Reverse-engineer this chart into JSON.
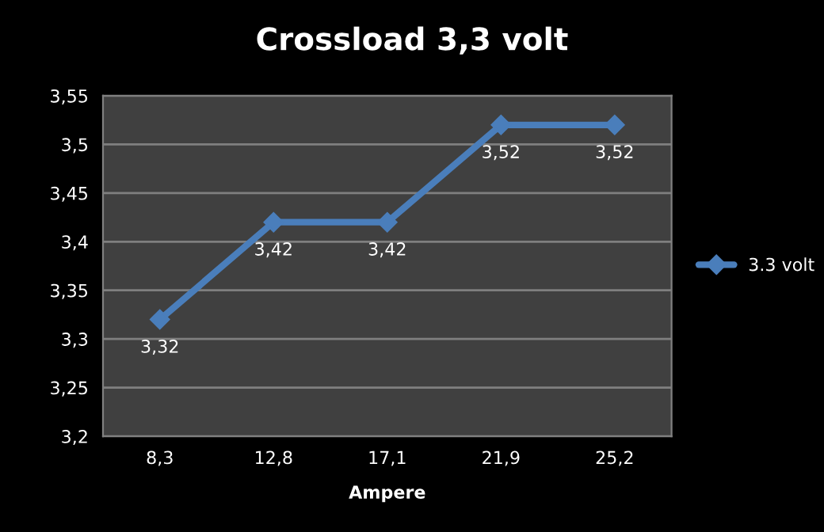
{
  "chart_data": {
    "type": "line",
    "title": "Crossload 3,3 volt",
    "xlabel": "Ampere",
    "categories": [
      "8,3",
      "12,8",
      "17,1",
      "21,9",
      "25,2"
    ],
    "series": [
      {
        "name": "3.3 volt",
        "color": "#4a7ebb",
        "values": [
          3.32,
          3.42,
          3.42,
          3.52,
          3.52
        ],
        "value_labels": [
          "3,32",
          "3,42",
          "3,42",
          "3,52",
          "3,52"
        ]
      }
    ],
    "ylim": [
      3.2,
      3.55
    ],
    "yticks": [
      {
        "value": 3.2,
        "label": "3,2"
      },
      {
        "value": 3.25,
        "label": "3,25"
      },
      {
        "value": 3.3,
        "label": "3,3"
      },
      {
        "value": 3.35,
        "label": "3,35"
      },
      {
        "value": 3.4,
        "label": "3,4"
      },
      {
        "value": 3.45,
        "label": "3,45"
      },
      {
        "value": 3.5,
        "label": "3,5"
      },
      {
        "value": 3.55,
        "label": "3,55"
      }
    ],
    "grid": "y",
    "legend": "right",
    "marker": "diamond",
    "line_style": "solid"
  }
}
